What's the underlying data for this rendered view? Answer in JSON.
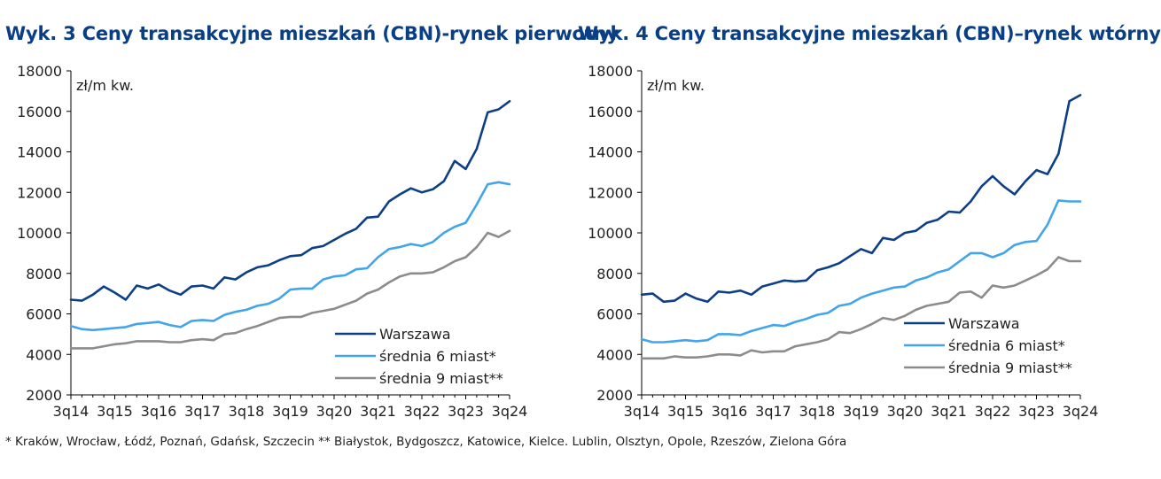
{
  "footnote": "* Kraków, Wrocław, Łódź, Poznań, Gdańsk, Szczecin ** Białystok, Bydgoszcz, Katowice, Kielce. Lublin, Olsztyn, Opole, Rzeszów, Zielona Góra",
  "colors": {
    "title": "#0a3f86",
    "warszawa": "#0d3f87",
    "srednia6": "#42a5ec",
    "srednia9": "#8c8c8c",
    "axis": "#000000"
  },
  "chart_data": [
    {
      "type": "line",
      "title": "Wyk. 3 Ceny transakcyjne mieszkań (CBN)-rynek pierwotny",
      "unit_label": "zł/m  kw.",
      "xlabel": "",
      "ylabel": "zł/m kw.",
      "ylim": [
        2000,
        18000
      ],
      "yticks": [
        "2000",
        "4000",
        "6000",
        "8000",
        "10000",
        "12000",
        "14000",
        "16000",
        "18000"
      ],
      "xticks": [
        "3q14",
        "3q15",
        "3q16",
        "3q17",
        "3q18",
        "3q19",
        "3q20",
        "3q21",
        "3q22",
        "3q23",
        "3q24"
      ],
      "legend_position": "bottom-right",
      "series": [
        {
          "name": "Warszawa",
          "color": "#0d3f87",
          "values": [
            6700,
            6650,
            6950,
            7350,
            7050,
            6700,
            7400,
            7250,
            7450,
            7150,
            6950,
            7350,
            7400,
            7250,
            7800,
            7700,
            8050,
            8300,
            8400,
            8650,
            8850,
            8900,
            9250,
            9350,
            9650,
            9950,
            10200,
            10750,
            10800,
            11550,
            11900,
            12200,
            12000,
            12150,
            12550,
            13550,
            13150,
            14150,
            15950,
            16100,
            16500
          ]
        },
        {
          "name": "średnia 6 miast*",
          "color": "#42a5ec",
          "values": [
            5400,
            5250,
            5200,
            5250,
            5300,
            5350,
            5500,
            5550,
            5600,
            5450,
            5350,
            5650,
            5700,
            5650,
            5950,
            6100,
            6200,
            6400,
            6500,
            6750,
            7200,
            7250,
            7250,
            7700,
            7850,
            7900,
            8200,
            8250,
            8800,
            9200,
            9300,
            9450,
            9350,
            9550,
            10000,
            10300,
            10500,
            11400,
            12400,
            12500,
            12400
          ]
        },
        {
          "name": "średnia 9 miast**",
          "color": "#8c8c8c",
          "values": [
            4300,
            4300,
            4300,
            4400,
            4500,
            4550,
            4650,
            4650,
            4650,
            4600,
            4600,
            4700,
            4750,
            4700,
            5000,
            5050,
            5250,
            5400,
            5600,
            5800,
            5850,
            5850,
            6050,
            6150,
            6250,
            6450,
            6650,
            7000,
            7200,
            7550,
            7850,
            8000,
            8000,
            8050,
            8300,
            8600,
            8800,
            9300,
            10000,
            9800,
            10100
          ]
        }
      ]
    },
    {
      "type": "line",
      "title": "Wyk. 4 Ceny transakcyjne mieszkań (CBN)–rynek wtórny",
      "unit_label": "zł/m  kw.",
      "xlabel": "",
      "ylabel": "zł/m kw.",
      "ylim": [
        2000,
        18000
      ],
      "yticks": [
        "2000",
        "4000",
        "6000",
        "8000",
        "10000",
        "12000",
        "14000",
        "16000",
        "18000"
      ],
      "xticks": [
        "3q14",
        "3q15",
        "3q16",
        "3q17",
        "3q18",
        "3q19",
        "3q20",
        "3q21",
        "3q22",
        "3q23",
        "3q24"
      ],
      "legend_position": "bottom-right",
      "series": [
        {
          "name": "Warszawa",
          "color": "#0d3f87",
          "values": [
            6950,
            7000,
            6600,
            6650,
            7000,
            6750,
            6600,
            7100,
            7050,
            7150,
            6950,
            7350,
            7500,
            7650,
            7600,
            7650,
            8150,
            8300,
            8500,
            8850,
            9200,
            9000,
            9750,
            9650,
            10000,
            10100,
            10500,
            10650,
            11050,
            11000,
            11550,
            12300,
            12800,
            12300,
            11900,
            12550,
            13100,
            12900,
            13900,
            16500,
            16800
          ]
        },
        {
          "name": "średnia 6 miast*",
          "color": "#42a5ec",
          "values": [
            4750,
            4600,
            4600,
            4650,
            4700,
            4650,
            4700,
            5000,
            5000,
            4950,
            5150,
            5300,
            5450,
            5400,
            5600,
            5750,
            5950,
            6050,
            6400,
            6500,
            6800,
            7000,
            7150,
            7300,
            7350,
            7650,
            7800,
            8050,
            8200,
            8600,
            9000,
            9000,
            8800,
            9000,
            9400,
            9550,
            9600,
            10400,
            11600,
            11550,
            11550
          ]
        },
        {
          "name": "średnia 9 miast**",
          "color": "#8c8c8c",
          "values": [
            3800,
            3800,
            3800,
            3900,
            3850,
            3850,
            3900,
            4000,
            4000,
            3950,
            4200,
            4100,
            4150,
            4150,
            4400,
            4500,
            4600,
            4750,
            5100,
            5050,
            5250,
            5500,
            5800,
            5700,
            5900,
            6200,
            6400,
            6500,
            6600,
            7050,
            7100,
            6800,
            7400,
            7300,
            7400,
            7650,
            7900,
            8200,
            8800,
            8600,
            8600
          ]
        }
      ]
    }
  ]
}
